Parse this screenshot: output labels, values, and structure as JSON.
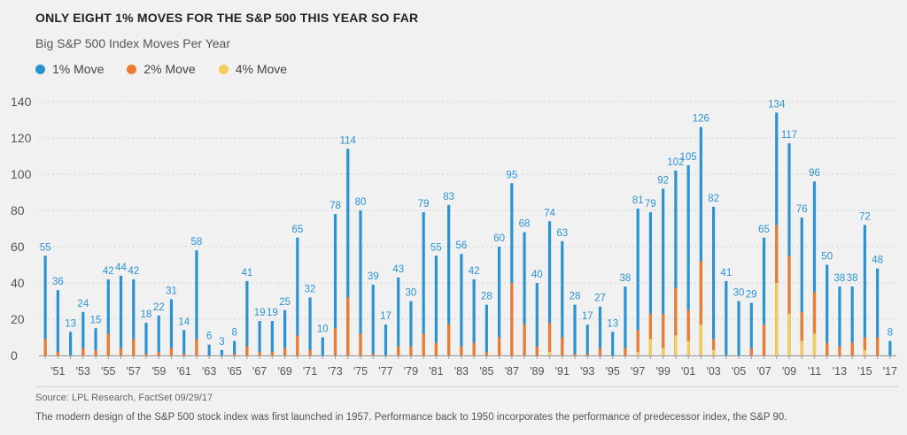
{
  "title": "ONLY EIGHT 1% MOVES FOR THE S&P 500 THIS YEAR SO FAR",
  "subtitle": "Big S&P 500 Index Moves Per Year",
  "legend": [
    {
      "label": "1% Move",
      "color": "#2b93d1"
    },
    {
      "label": "2% Move",
      "color": "#ef7b2e"
    },
    {
      "label": "4% Move",
      "color": "#f5cd5a"
    }
  ],
  "source": "Source: LPL Research, FactSet   09/29/17",
  "note": "The modern design of the S&P 500 stock index was first launched in 1957. Performance back to 1950 incorporates the performance of predecessor index, the S&P 90.",
  "chart_data": {
    "type": "bar",
    "ylim": [
      0,
      140
    ],
    "yticks": [
      0,
      20,
      40,
      60,
      80,
      100,
      120,
      140
    ],
    "grid": true,
    "legend_position": "top-left",
    "categories": [
      1950,
      1951,
      1952,
      1953,
      1954,
      1955,
      1956,
      1957,
      1958,
      1959,
      1960,
      1961,
      1962,
      1963,
      1964,
      1965,
      1966,
      1967,
      1968,
      1969,
      1970,
      1971,
      1972,
      1973,
      1974,
      1975,
      1976,
      1977,
      1978,
      1979,
      1980,
      1981,
      1982,
      1983,
      1984,
      1985,
      1986,
      1987,
      1988,
      1989,
      1990,
      1991,
      1992,
      1993,
      1994,
      1995,
      1996,
      1997,
      1998,
      1999,
      2000,
      2001,
      2002,
      2003,
      2004,
      2005,
      2006,
      2007,
      2008,
      2009,
      2010,
      2011,
      2012,
      2013,
      2014,
      2015,
      2016,
      2017
    ],
    "xtick_labels": [
      "'51",
      "'53",
      "'55",
      "'57",
      "'59",
      "'61",
      "'63",
      "'65",
      "'67",
      "'69",
      "'71",
      "'73",
      "'75",
      "'77",
      "'79",
      "'81",
      "'83",
      "'85",
      "'87",
      "'89",
      "'91",
      "'93",
      "'95",
      "'97",
      "'99",
      "'01",
      "'03",
      "'05",
      "'07",
      "'09",
      "'11",
      "'13",
      "'15",
      "'17"
    ],
    "series": [
      {
        "name": "1% Move",
        "color": "#2b93d1",
        "values": [
          55,
          36,
          13,
          24,
          15,
          42,
          44,
          42,
          18,
          22,
          31,
          14,
          58,
          6,
          3,
          8,
          41,
          19,
          19,
          25,
          65,
          32,
          10,
          78,
          114,
          80,
          39,
          17,
          43,
          30,
          79,
          55,
          83,
          56,
          42,
          28,
          60,
          95,
          68,
          40,
          74,
          63,
          28,
          17,
          27,
          13,
          38,
          81,
          79,
          92,
          102,
          105,
          126,
          82,
          41,
          30,
          29,
          65,
          134,
          117,
          76,
          96,
          50,
          38,
          38,
          72,
          48,
          8
        ]
      },
      {
        "name": "2% Move",
        "color": "#ef7b2e",
        "values": [
          9,
          2,
          0,
          4,
          3,
          12,
          4,
          9,
          1,
          2,
          4,
          1,
          9,
          0,
          0,
          1,
          5,
          2,
          2,
          4,
          11,
          3,
          0,
          15,
          32,
          12,
          1,
          0,
          5,
          5,
          12,
          7,
          17,
          5,
          7,
          2,
          10,
          40,
          17,
          5,
          18,
          10,
          1,
          1,
          4,
          0,
          4,
          14,
          23,
          23,
          37,
          25,
          52,
          9,
          0,
          0,
          4,
          17,
          72,
          55,
          24,
          35,
          7,
          5,
          7,
          10,
          10,
          0
        ]
      },
      {
        "name": "4% Move",
        "color": "#f5cd5a",
        "values": [
          0,
          0,
          0,
          0,
          0,
          0,
          0,
          0,
          0,
          0,
          0,
          0,
          0,
          0,
          0,
          0,
          0,
          0,
          0,
          0,
          0,
          0,
          0,
          0,
          0,
          0,
          0,
          0,
          0,
          0,
          0,
          0,
          0,
          0,
          0,
          0,
          0,
          0,
          0,
          0,
          2,
          0,
          0,
          0,
          0,
          0,
          0,
          2,
          9,
          4,
          11,
          8,
          17,
          3,
          0,
          0,
          0,
          0,
          40,
          23,
          8,
          12,
          0,
          0,
          0,
          3,
          0,
          0
        ]
      }
    ],
    "data_labels": [
      55,
      36,
      13,
      24,
      15,
      42,
      44,
      42,
      18,
      22,
      31,
      14,
      58,
      6,
      3,
      8,
      41,
      19,
      19,
      25,
      65,
      32,
      10,
      78,
      114,
      80,
      39,
      17,
      43,
      30,
      79,
      55,
      83,
      56,
      42,
      28,
      60,
      95,
      68,
      40,
      74,
      63,
      28,
      17,
      27,
      13,
      38,
      81,
      79,
      92,
      102,
      105,
      126,
      82,
      41,
      30,
      29,
      65,
      134,
      117,
      76,
      96,
      50,
      38,
      38,
      72,
      48,
      8
    ]
  }
}
